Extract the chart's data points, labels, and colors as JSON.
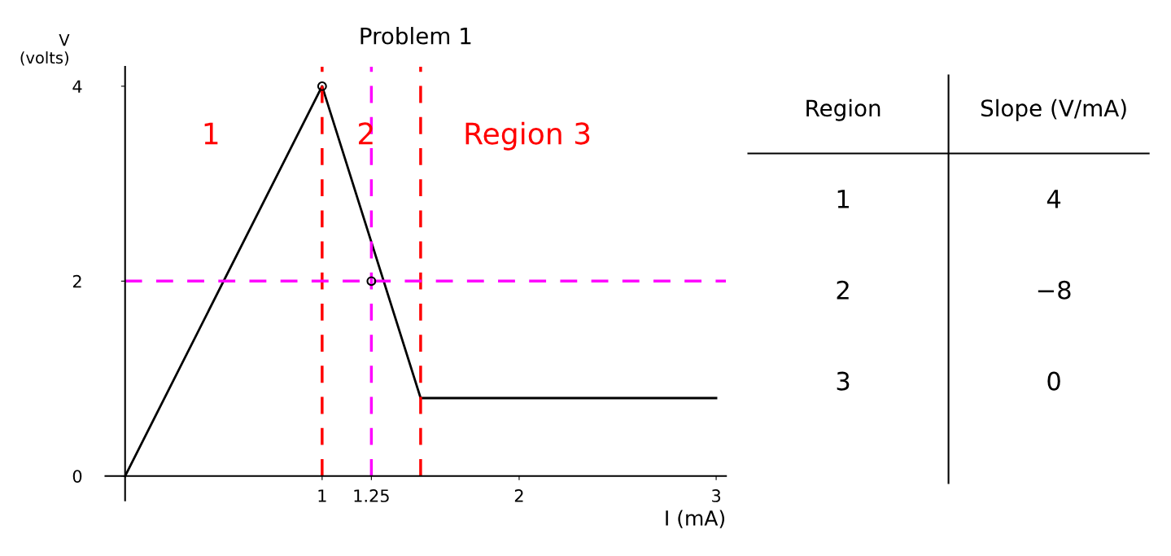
{
  "chart_data": [
    {
      "type": "line",
      "title": "Problem 1",
      "xlabel": "I (mA)",
      "ylabel": "V\n(volts)",
      "series": [
        {
          "type": "line",
          "color": "#000000",
          "x": [
            0,
            1,
            1.5,
            3
          ],
          "values": [
            0,
            4,
            0.8,
            0.8
          ],
          "marker": "none"
        },
        {
          "type": "scatter",
          "color": "#000000",
          "x": [
            1,
            1.25
          ],
          "values": [
            4,
            2
          ],
          "marker": "circle"
        }
      ],
      "xlim": [
        -0.1,
        3.05
      ],
      "ylim": [
        -0.25,
        4.2
      ],
      "xticks": [
        1,
        1.25,
        2,
        3
      ],
      "yticks": [
        0,
        2,
        4
      ],
      "ref_lines": [
        {
          "axis": "x",
          "value": 1,
          "color": "#ff0000",
          "line_style": "dashed"
        },
        {
          "axis": "x",
          "value": 1.5,
          "color": "#ff0000",
          "line_style": "dashed"
        },
        {
          "axis": "y",
          "value": 2,
          "color": "#ff00ff",
          "line_style": "dashed"
        },
        {
          "axis": "x",
          "value": 1.25,
          "color": "#ff00ff",
          "line_style": "dashed"
        }
      ],
      "annotations": [
        "1",
        "2",
        "Region 3"
      ],
      "grid": false,
      "legend": false
    },
    {
      "type": "other",
      "annotations": [
        "Region",
        "Slope (V/mA)",
        "1",
        "4",
        "2",
        "−8",
        "3",
        "0"
      ]
    }
  ]
}
